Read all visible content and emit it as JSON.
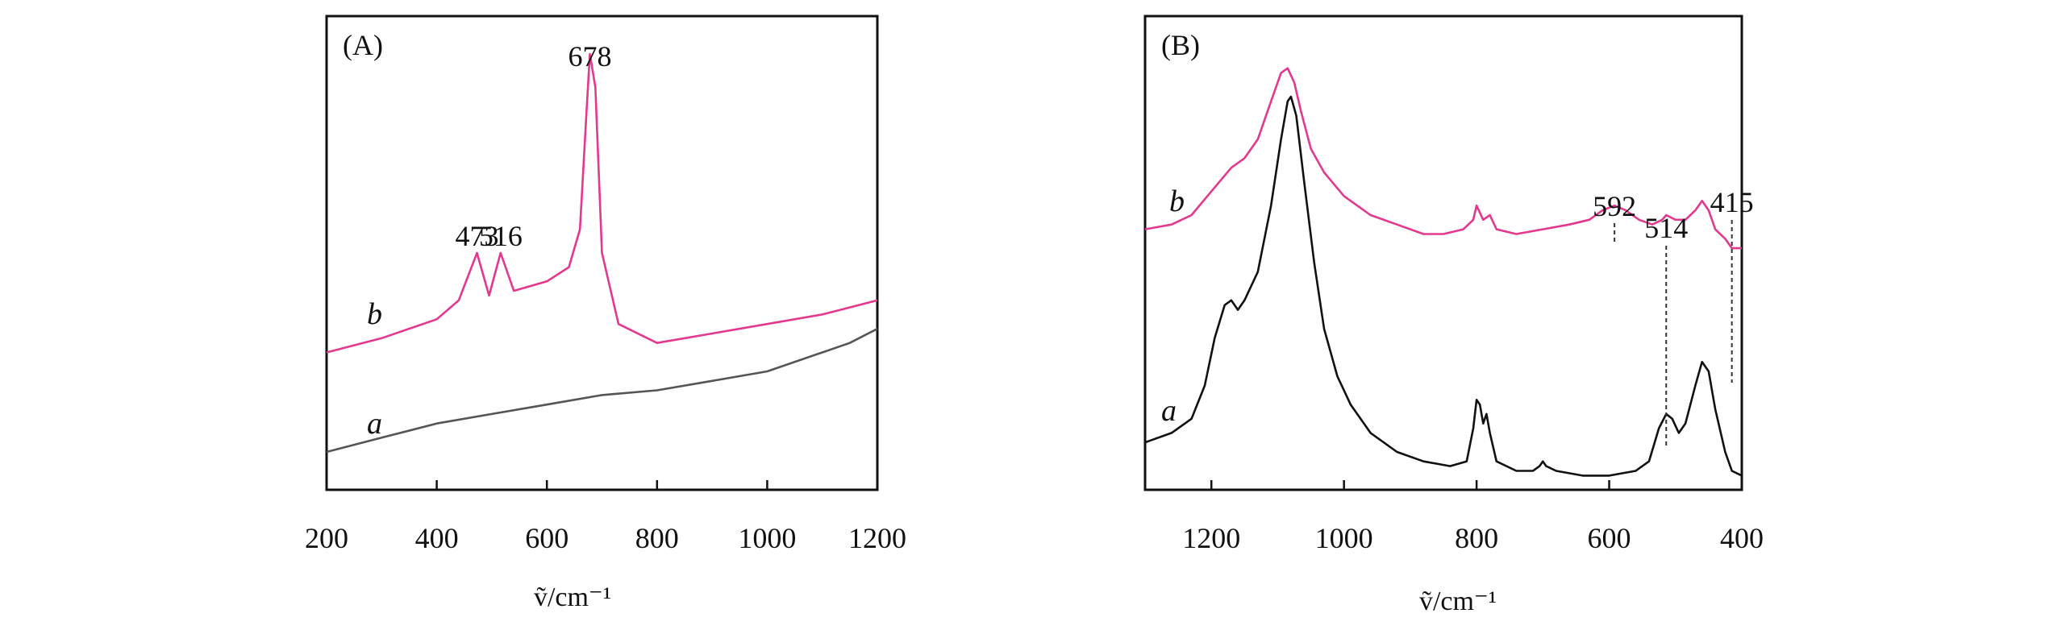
{
  "chart_data": [
    {
      "type": "line",
      "panel_label": "(A)",
      "xlabel": "ṽ/cm⁻¹",
      "ylabel": "",
      "xlim": [
        200,
        1200
      ],
      "x_reversed": false,
      "x_ticks": [
        200,
        400,
        600,
        800,
        1000,
        1200
      ],
      "grid": false,
      "series": [
        {
          "name": "b",
          "color": "#e4388f",
          "points": [
            [
              200,
              0.29
            ],
            [
              300,
              0.32
            ],
            [
              400,
              0.36
            ],
            [
              440,
              0.4
            ],
            [
              473,
              0.5
            ],
            [
              495,
              0.41
            ],
            [
              516,
              0.5
            ],
            [
              540,
              0.42
            ],
            [
              600,
              0.44
            ],
            [
              640,
              0.47
            ],
            [
              660,
              0.55
            ],
            [
              672,
              0.8
            ],
            [
              678,
              0.92
            ],
            [
              688,
              0.85
            ],
            [
              700,
              0.5
            ],
            [
              730,
              0.35
            ],
            [
              800,
              0.31
            ],
            [
              900,
              0.33
            ],
            [
              1000,
              0.35
            ],
            [
              1100,
              0.37
            ],
            [
              1200,
              0.4
            ]
          ]
        },
        {
          "name": "a",
          "color": "#555555",
          "points": [
            [
              200,
              0.08
            ],
            [
              300,
              0.11
            ],
            [
              400,
              0.14
            ],
            [
              500,
              0.16
            ],
            [
              600,
              0.18
            ],
            [
              700,
              0.2
            ],
            [
              800,
              0.21
            ],
            [
              900,
              0.23
            ],
            [
              1000,
              0.25
            ],
            [
              1100,
              0.29
            ],
            [
              1150,
              0.31
            ],
            [
              1200,
              0.34
            ]
          ]
        }
      ],
      "annotations": [
        {
          "text": "473",
          "x": 473
        },
        {
          "text": "516",
          "x": 516
        },
        {
          "text": "678",
          "x": 678
        }
      ]
    },
    {
      "type": "line",
      "panel_label": "(B)",
      "xlabel": "ṽ/cm⁻¹",
      "ylabel": "",
      "xlim": [
        1300,
        400
      ],
      "x_reversed": true,
      "x_ticks": [
        1200,
        1000,
        800,
        600,
        400
      ],
      "grid": false,
      "series": [
        {
          "name": "b",
          "color": "#e4388f",
          "points": [
            [
              1300,
              0.55
            ],
            [
              1260,
              0.56
            ],
            [
              1230,
              0.58
            ],
            [
              1200,
              0.63
            ],
            [
              1170,
              0.68
            ],
            [
              1150,
              0.7
            ],
            [
              1130,
              0.74
            ],
            [
              1110,
              0.82
            ],
            [
              1095,
              0.88
            ],
            [
              1085,
              0.89
            ],
            [
              1075,
              0.86
            ],
            [
              1065,
              0.8
            ],
            [
              1050,
              0.72
            ],
            [
              1030,
              0.67
            ],
            [
              1000,
              0.62
            ],
            [
              960,
              0.58
            ],
            [
              920,
              0.56
            ],
            [
              880,
              0.54
            ],
            [
              850,
              0.54
            ],
            [
              820,
              0.55
            ],
            [
              805,
              0.57
            ],
            [
              800,
              0.6
            ],
            [
              790,
              0.57
            ],
            [
              780,
              0.58
            ],
            [
              770,
              0.55
            ],
            [
              740,
              0.54
            ],
            [
              700,
              0.55
            ],
            [
              660,
              0.56
            ],
            [
              630,
              0.57
            ],
            [
              610,
              0.59
            ],
            [
              592,
              0.6
            ],
            [
              575,
              0.59
            ],
            [
              555,
              0.57
            ],
            [
              535,
              0.56
            ],
            [
              520,
              0.57
            ],
            [
              514,
              0.58
            ],
            [
              500,
              0.57
            ],
            [
              485,
              0.57
            ],
            [
              470,
              0.59
            ],
            [
              460,
              0.61
            ],
            [
              450,
              0.59
            ],
            [
              440,
              0.55
            ],
            [
              425,
              0.53
            ],
            [
              415,
              0.51
            ],
            [
              400,
              0.51
            ]
          ]
        },
        {
          "name": "a",
          "color": "#111111",
          "points": [
            [
              1300,
              0.1
            ],
            [
              1260,
              0.12
            ],
            [
              1230,
              0.15
            ],
            [
              1210,
              0.22
            ],
            [
              1195,
              0.32
            ],
            [
              1180,
              0.39
            ],
            [
              1170,
              0.4
            ],
            [
              1160,
              0.38
            ],
            [
              1150,
              0.4
            ],
            [
              1130,
              0.46
            ],
            [
              1110,
              0.6
            ],
            [
              1095,
              0.74
            ],
            [
              1085,
              0.82
            ],
            [
              1080,
              0.83
            ],
            [
              1072,
              0.79
            ],
            [
              1060,
              0.65
            ],
            [
              1045,
              0.48
            ],
            [
              1030,
              0.34
            ],
            [
              1010,
              0.24
            ],
            [
              990,
              0.18
            ],
            [
              960,
              0.12
            ],
            [
              920,
              0.08
            ],
            [
              880,
              0.06
            ],
            [
              840,
              0.05
            ],
            [
              815,
              0.06
            ],
            [
              805,
              0.13
            ],
            [
              800,
              0.19
            ],
            [
              795,
              0.18
            ],
            [
              790,
              0.14
            ],
            [
              785,
              0.16
            ],
            [
              780,
              0.12
            ],
            [
              770,
              0.06
            ],
            [
              740,
              0.04
            ],
            [
              715,
              0.04
            ],
            [
              705,
              0.05
            ],
            [
              700,
              0.06
            ],
            [
              695,
              0.05
            ],
            [
              680,
              0.04
            ],
            [
              640,
              0.03
            ],
            [
              600,
              0.03
            ],
            [
              560,
              0.04
            ],
            [
              540,
              0.06
            ],
            [
              525,
              0.13
            ],
            [
              514,
              0.16
            ],
            [
              505,
              0.15
            ],
            [
              495,
              0.12
            ],
            [
              485,
              0.14
            ],
            [
              470,
              0.22
            ],
            [
              460,
              0.27
            ],
            [
              450,
              0.25
            ],
            [
              440,
              0.17
            ],
            [
              425,
              0.08
            ],
            [
              415,
              0.04
            ],
            [
              400,
              0.03
            ]
          ]
        }
      ],
      "annotations": [
        {
          "text": "592",
          "x": 592
        },
        {
          "text": "514",
          "x": 514
        },
        {
          "text": "415",
          "x": 415
        }
      ]
    }
  ]
}
